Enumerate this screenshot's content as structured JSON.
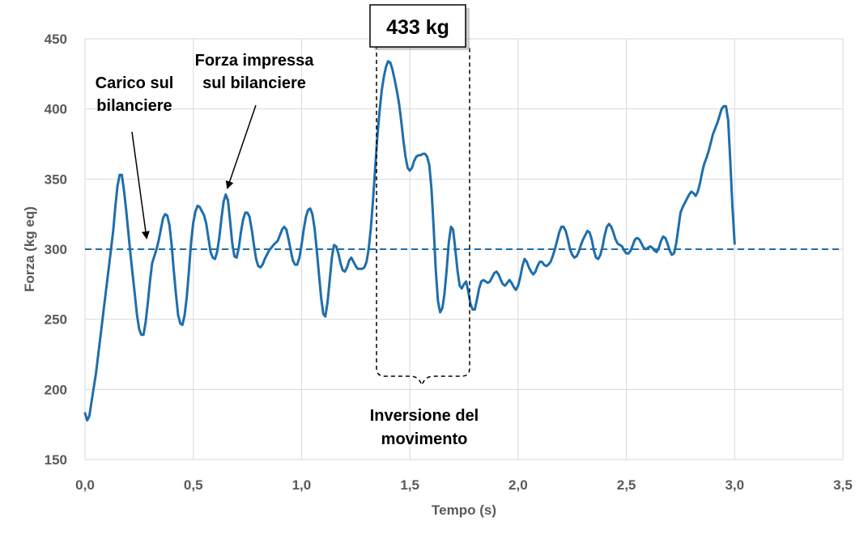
{
  "chart_data": {
    "type": "line",
    "title": "",
    "xlabel": "Tempo (s)",
    "ylabel": "Forza (kg eq)",
    "xlim": [
      0,
      3.5
    ],
    "ylim": [
      150,
      450
    ],
    "x_ticks": [
      "0,0",
      "0,5",
      "1,0",
      "1,5",
      "2,0",
      "2,5",
      "3,0",
      "3,5"
    ],
    "y_ticks": [
      "150",
      "200",
      "250",
      "300",
      "350",
      "400",
      "450"
    ],
    "grid": true,
    "colors": {
      "line": "#1F6EAB",
      "reference": "#1F6EAB",
      "grid": "#D9D9D9"
    },
    "reference_line": {
      "y": 300,
      "style": "dashed"
    },
    "series": [
      {
        "points": [
          [
            0.0,
            183
          ],
          [
            0.01,
            178
          ],
          [
            0.02,
            181
          ],
          [
            0.03,
            191
          ],
          [
            0.05,
            211
          ],
          [
            0.07,
            236
          ],
          [
            0.09,
            262
          ],
          [
            0.11,
            287
          ],
          [
            0.13,
            313
          ],
          [
            0.14,
            330
          ],
          [
            0.15,
            345
          ],
          [
            0.16,
            353
          ],
          [
            0.17,
            353
          ],
          [
            0.18,
            342
          ],
          [
            0.19,
            328
          ],
          [
            0.2,
            312
          ],
          [
            0.21,
            296
          ],
          [
            0.22,
            282
          ],
          [
            0.23,
            268
          ],
          [
            0.24,
            253
          ],
          [
            0.25,
            243
          ],
          [
            0.26,
            239
          ],
          [
            0.27,
            239
          ],
          [
            0.28,
            248
          ],
          [
            0.29,
            262
          ],
          [
            0.3,
            277
          ],
          [
            0.31,
            290
          ],
          [
            0.32,
            295
          ],
          [
            0.33,
            300
          ],
          [
            0.34,
            306
          ],
          [
            0.35,
            314
          ],
          [
            0.36,
            322
          ],
          [
            0.37,
            325
          ],
          [
            0.38,
            324
          ],
          [
            0.39,
            317
          ],
          [
            0.4,
            303
          ],
          [
            0.41,
            285
          ],
          [
            0.42,
            268
          ],
          [
            0.43,
            253
          ],
          [
            0.44,
            247
          ],
          [
            0.45,
            246
          ],
          [
            0.46,
            253
          ],
          [
            0.47,
            266
          ],
          [
            0.48,
            285
          ],
          [
            0.49,
            305
          ],
          [
            0.5,
            319
          ],
          [
            0.51,
            327
          ],
          [
            0.52,
            331
          ],
          [
            0.53,
            330
          ],
          [
            0.54,
            327
          ],
          [
            0.55,
            324
          ],
          [
            0.56,
            318
          ],
          [
            0.57,
            308
          ],
          [
            0.58,
            298
          ],
          [
            0.59,
            294
          ],
          [
            0.6,
            293
          ],
          [
            0.61,
            298
          ],
          [
            0.62,
            308
          ],
          [
            0.63,
            322
          ],
          [
            0.64,
            334
          ],
          [
            0.65,
            339
          ],
          [
            0.66,
            335
          ],
          [
            0.67,
            320
          ],
          [
            0.68,
            304
          ],
          [
            0.69,
            295
          ],
          [
            0.7,
            294
          ],
          [
            0.71,
            301
          ],
          [
            0.72,
            312
          ],
          [
            0.73,
            321
          ],
          [
            0.74,
            326
          ],
          [
            0.75,
            326
          ],
          [
            0.76,
            323
          ],
          [
            0.77,
            314
          ],
          [
            0.78,
            303
          ],
          [
            0.79,
            293
          ],
          [
            0.8,
            288
          ],
          [
            0.81,
            287
          ],
          [
            0.82,
            289
          ],
          [
            0.83,
            293
          ],
          [
            0.84,
            296
          ],
          [
            0.85,
            299
          ],
          [
            0.87,
            303
          ],
          [
            0.89,
            306
          ],
          [
            0.9,
            310
          ],
          [
            0.91,
            314
          ],
          [
            0.92,
            316
          ],
          [
            0.93,
            314
          ],
          [
            0.94,
            307
          ],
          [
            0.95,
            299
          ],
          [
            0.96,
            292
          ],
          [
            0.97,
            289
          ],
          [
            0.98,
            289
          ],
          [
            0.99,
            294
          ],
          [
            1.0,
            303
          ],
          [
            1.01,
            314
          ],
          [
            1.02,
            323
          ],
          [
            1.03,
            328
          ],
          [
            1.04,
            329
          ],
          [
            1.05,
            325
          ],
          [
            1.06,
            315
          ],
          [
            1.07,
            300
          ],
          [
            1.08,
            283
          ],
          [
            1.09,
            266
          ],
          [
            1.1,
            254
          ],
          [
            1.11,
            252
          ],
          [
            1.12,
            262
          ],
          [
            1.13,
            278
          ],
          [
            1.14,
            294
          ],
          [
            1.15,
            303
          ],
          [
            1.16,
            302
          ],
          [
            1.17,
            297
          ],
          [
            1.18,
            290
          ],
          [
            1.19,
            285
          ],
          [
            1.2,
            284
          ],
          [
            1.21,
            287
          ],
          [
            1.22,
            292
          ],
          [
            1.23,
            294
          ],
          [
            1.24,
            291
          ],
          [
            1.25,
            288
          ],
          [
            1.26,
            286
          ],
          [
            1.28,
            286
          ],
          [
            1.29,
            287
          ],
          [
            1.3,
            291
          ],
          [
            1.31,
            300
          ],
          [
            1.32,
            315
          ],
          [
            1.33,
            335
          ],
          [
            1.34,
            358
          ],
          [
            1.35,
            380
          ],
          [
            1.36,
            398
          ],
          [
            1.37,
            413
          ],
          [
            1.38,
            423
          ],
          [
            1.39,
            430
          ],
          [
            1.4,
            434
          ],
          [
            1.41,
            433
          ],
          [
            1.42,
            428
          ],
          [
            1.43,
            421
          ],
          [
            1.44,
            413
          ],
          [
            1.45,
            404
          ],
          [
            1.46,
            392
          ],
          [
            1.47,
            378
          ],
          [
            1.48,
            366
          ],
          [
            1.49,
            358
          ],
          [
            1.5,
            356
          ],
          [
            1.51,
            358
          ],
          [
            1.52,
            363
          ],
          [
            1.53,
            366
          ],
          [
            1.54,
            367
          ],
          [
            1.55,
            367
          ],
          [
            1.56,
            368
          ],
          [
            1.57,
            368
          ],
          [
            1.58,
            366
          ],
          [
            1.59,
            360
          ],
          [
            1.6,
            343
          ],
          [
            1.61,
            315
          ],
          [
            1.62,
            285
          ],
          [
            1.63,
            263
          ],
          [
            1.64,
            255
          ],
          [
            1.65,
            258
          ],
          [
            1.66,
            268
          ],
          [
            1.67,
            285
          ],
          [
            1.68,
            305
          ],
          [
            1.69,
            316
          ],
          [
            1.7,
            314
          ],
          [
            1.71,
            300
          ],
          [
            1.72,
            285
          ],
          [
            1.73,
            274
          ],
          [
            1.74,
            272
          ],
          [
            1.75,
            275
          ],
          [
            1.76,
            277
          ],
          [
            1.77,
            270
          ],
          [
            1.78,
            261
          ],
          [
            1.79,
            257
          ],
          [
            1.8,
            257
          ],
          [
            1.81,
            264
          ],
          [
            1.82,
            272
          ],
          [
            1.83,
            277
          ],
          [
            1.84,
            278
          ],
          [
            1.85,
            277
          ],
          [
            1.86,
            276
          ],
          [
            1.87,
            277
          ],
          [
            1.88,
            280
          ],
          [
            1.89,
            283
          ],
          [
            1.9,
            284
          ],
          [
            1.91,
            282
          ],
          [
            1.92,
            278
          ],
          [
            1.93,
            275
          ],
          [
            1.94,
            274
          ],
          [
            1.95,
            276
          ],
          [
            1.96,
            278
          ],
          [
            1.97,
            276
          ],
          [
            1.98,
            273
          ],
          [
            1.99,
            271
          ],
          [
            2.0,
            274
          ],
          [
            2.01,
            280
          ],
          [
            2.02,
            288
          ],
          [
            2.03,
            293
          ],
          [
            2.04,
            291
          ],
          [
            2.05,
            287
          ],
          [
            2.06,
            284
          ],
          [
            2.07,
            282
          ],
          [
            2.08,
            284
          ],
          [
            2.09,
            288
          ],
          [
            2.1,
            291
          ],
          [
            2.11,
            291
          ],
          [
            2.12,
            289
          ],
          [
            2.13,
            288
          ],
          [
            2.14,
            289
          ],
          [
            2.15,
            291
          ],
          [
            2.16,
            295
          ],
          [
            2.17,
            300
          ],
          [
            2.18,
            306
          ],
          [
            2.19,
            312
          ],
          [
            2.2,
            316
          ],
          [
            2.21,
            316
          ],
          [
            2.22,
            313
          ],
          [
            2.23,
            307
          ],
          [
            2.24,
            300
          ],
          [
            2.25,
            296
          ],
          [
            2.26,
            294
          ],
          [
            2.27,
            295
          ],
          [
            2.28,
            298
          ],
          [
            2.29,
            303
          ],
          [
            2.3,
            307
          ],
          [
            2.31,
            310
          ],
          [
            2.32,
            313
          ],
          [
            2.33,
            312
          ],
          [
            2.34,
            307
          ],
          [
            2.35,
            299
          ],
          [
            2.36,
            294
          ],
          [
            2.37,
            293
          ],
          [
            2.38,
            296
          ],
          [
            2.39,
            302
          ],
          [
            2.4,
            310
          ],
          [
            2.41,
            316
          ],
          [
            2.42,
            318
          ],
          [
            2.43,
            316
          ],
          [
            2.44,
            312
          ],
          [
            2.45,
            307
          ],
          [
            2.46,
            304
          ],
          [
            2.47,
            303
          ],
          [
            2.48,
            302
          ],
          [
            2.49,
            299
          ],
          [
            2.5,
            297
          ],
          [
            2.51,
            297
          ],
          [
            2.52,
            299
          ],
          [
            2.53,
            303
          ],
          [
            2.54,
            307
          ],
          [
            2.55,
            308
          ],
          [
            2.56,
            307
          ],
          [
            2.57,
            304
          ],
          [
            2.58,
            301
          ],
          [
            2.59,
            300
          ],
          [
            2.6,
            301
          ],
          [
            2.61,
            302
          ],
          [
            2.62,
            301
          ],
          [
            2.63,
            299
          ],
          [
            2.64,
            298
          ],
          [
            2.65,
            301
          ],
          [
            2.66,
            306
          ],
          [
            2.67,
            309
          ],
          [
            2.68,
            308
          ],
          [
            2.69,
            304
          ],
          [
            2.7,
            299
          ],
          [
            2.71,
            296
          ],
          [
            2.72,
            297
          ],
          [
            2.73,
            304
          ],
          [
            2.74,
            315
          ],
          [
            2.75,
            326
          ],
          [
            2.76,
            330
          ],
          [
            2.77,
            333
          ],
          [
            2.78,
            336
          ],
          [
            2.79,
            339
          ],
          [
            2.8,
            341
          ],
          [
            2.81,
            340
          ],
          [
            2.82,
            338
          ],
          [
            2.83,
            341
          ],
          [
            2.84,
            347
          ],
          [
            2.85,
            355
          ],
          [
            2.86,
            361
          ],
          [
            2.87,
            365
          ],
          [
            2.88,
            370
          ],
          [
            2.89,
            376
          ],
          [
            2.9,
            382
          ],
          [
            2.91,
            386
          ],
          [
            2.92,
            390
          ],
          [
            2.93,
            395
          ],
          [
            2.94,
            400
          ],
          [
            2.95,
            402
          ],
          [
            2.96,
            402
          ],
          [
            2.97,
            392
          ],
          [
            2.98,
            363
          ],
          [
            2.99,
            330
          ],
          [
            3.0,
            304
          ]
        ]
      }
    ],
    "annotations": {
      "carico": [
        "Carico sul",
        "bilanciere"
      ],
      "forza": [
        "Forza impressa",
        "sul bilanciere"
      ],
      "inversione": [
        "Inversione del",
        "movimento"
      ],
      "peak_label": "433 kg"
    }
  }
}
